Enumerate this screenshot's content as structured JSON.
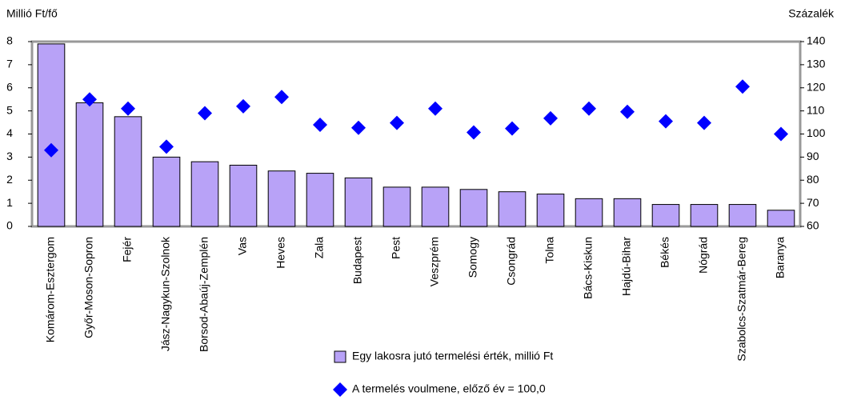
{
  "chart_data": {
    "type": "bar_scatter",
    "ylabel": "Millió Ft/fő",
    "y2label": "Százalék",
    "categories": [
      "Komárom-Esztergom",
      "Győr-Moson-Sopron",
      "Fejér",
      "Jász-Nagykun-Szolnok",
      "Borsod-Abaúj-Zemplén",
      "Vas",
      "Heves",
      "Zala",
      "Budapest",
      "Pest",
      "Veszprém",
      "Somogy",
      "Csongrád",
      "Tolna",
      "Bács-Kiskun",
      "Hajdú-Bihar",
      "Békés",
      "Nógrád",
      "Szabolcs-Szatmár-Bereg",
      "Baranya"
    ],
    "series": [
      {
        "name": "Egy lakosra jutó termelési érték, millió Ft",
        "color": "#b8a2f7",
        "axis": "y",
        "values": [
          7.9,
          5.35,
          4.75,
          3.0,
          2.8,
          2.65,
          2.4,
          2.3,
          2.1,
          1.7,
          1.7,
          1.6,
          1.5,
          1.4,
          1.2,
          1.2,
          0.95,
          0.95,
          0.95,
          0.7
        ]
      },
      {
        "name": "A termelés voulmene, előző év = 100,0",
        "color": "#0000ff",
        "axis": "y2",
        "values": [
          93,
          115,
          111,
          94.5,
          109,
          112,
          116,
          104,
          102.7,
          104.8,
          111,
          100.7,
          102.4,
          106.8,
          111,
          109.6,
          105.5,
          104.8,
          120.5,
          100
        ]
      }
    ],
    "ylim": [
      0,
      8
    ],
    "yticks": [
      0,
      1,
      2,
      3,
      4,
      5,
      6,
      7,
      8
    ],
    "y2lim": [
      60,
      140
    ],
    "y2ticks": [
      60,
      70,
      80,
      90,
      100,
      110,
      120,
      130,
      140
    ]
  }
}
